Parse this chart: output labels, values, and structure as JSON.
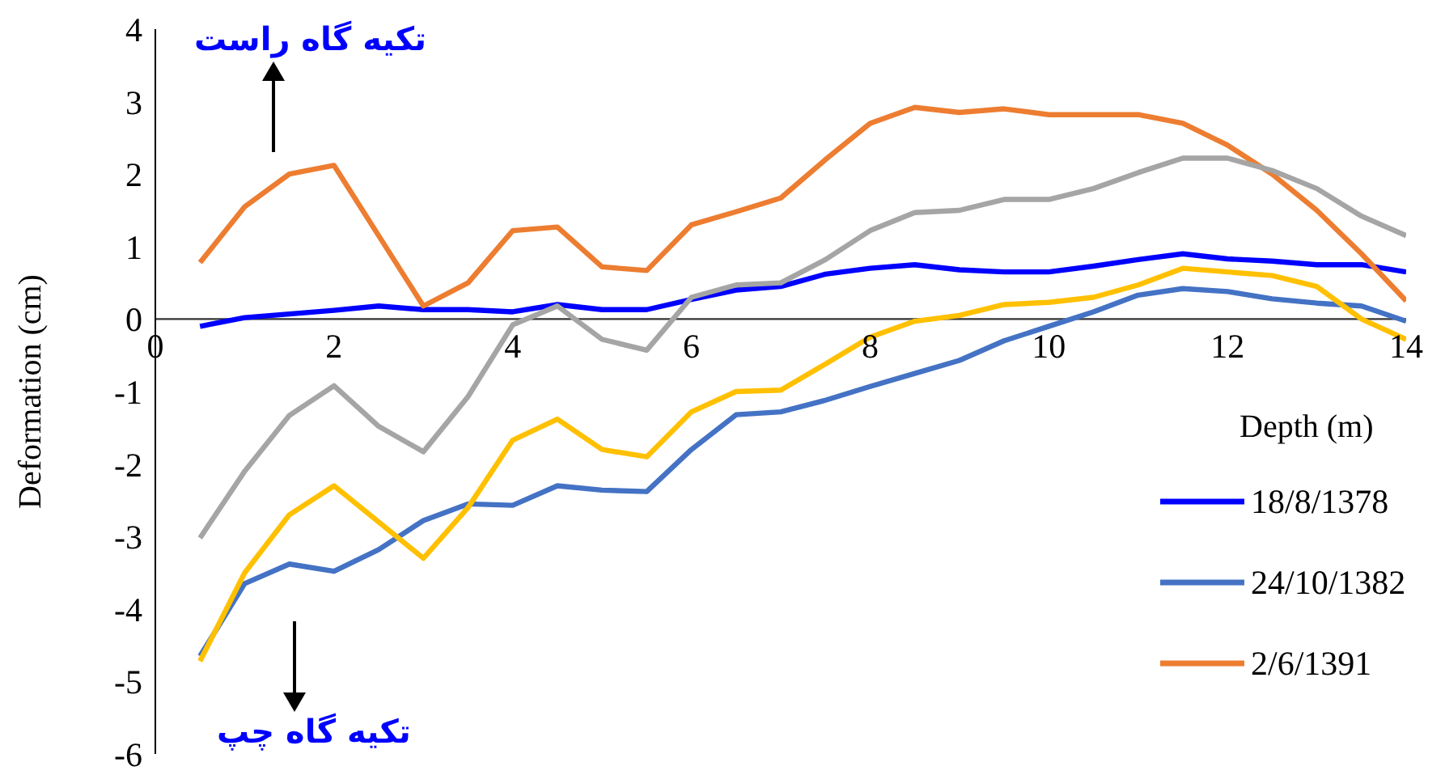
{
  "chart_data": {
    "type": "line",
    "xlabel": "Depth (m)",
    "ylabel": "Deformation (cm)",
    "x": [
      0.5,
      1,
      1.5,
      2,
      2.5,
      3,
      3.5,
      4,
      4.5,
      5,
      5.5,
      6,
      6.5,
      7,
      7.5,
      8,
      8.5,
      9,
      9.5,
      10,
      10.5,
      11,
      11.5,
      12,
      12.5,
      13,
      13.5,
      14
    ],
    "series": [
      {
        "name": "18/8/1378",
        "color": "#0000ff",
        "values": [
          -0.1,
          0.02,
          0.07,
          0.12,
          0.18,
          0.13,
          0.13,
          0.1,
          0.2,
          0.13,
          0.13,
          0.27,
          0.4,
          0.45,
          0.62,
          0.7,
          0.75,
          0.68,
          0.65,
          0.65,
          0.73,
          0.82,
          0.9,
          0.83,
          0.8,
          0.75,
          0.75,
          0.65
        ]
      },
      {
        "name": "24/10/1382",
        "color": "#4472c4",
        "values": [
          -4.65,
          -3.65,
          -3.38,
          -3.48,
          -3.18,
          -2.78,
          -2.55,
          -2.57,
          -2.3,
          -2.36,
          -2.38,
          -1.8,
          -1.32,
          -1.28,
          -1.12,
          -0.93,
          -0.75,
          -0.57,
          -0.3,
          -0.1,
          0.1,
          0.33,
          0.42,
          0.38,
          0.28,
          0.22,
          0.18,
          -0.03
        ]
      },
      {
        "name": "2/6/1391",
        "color": "#ed7d31",
        "values": [
          0.78,
          1.55,
          2.0,
          2.12,
          1.15,
          0.18,
          0.5,
          1.22,
          1.27,
          0.72,
          0.67,
          1.3,
          1.48,
          1.67,
          2.2,
          2.7,
          2.92,
          2.85,
          2.9,
          2.82,
          2.82,
          2.82,
          2.7,
          2.4,
          2.0,
          1.5,
          0.9,
          0.25
        ]
      },
      {
        "color": "#a5a5a5",
        "values": [
          -3.02,
          -2.1,
          -1.33,
          -0.92,
          -1.48,
          -1.83,
          -1.07,
          -0.08,
          0.18,
          -0.28,
          -0.43,
          0.3,
          0.47,
          0.5,
          0.82,
          1.22,
          1.47,
          1.5,
          1.65,
          1.65,
          1.8,
          2.02,
          2.22,
          2.22,
          2.05,
          1.8,
          1.42,
          1.15
        ]
      },
      {
        "color": "#ffc000",
        "values": [
          -4.72,
          -3.5,
          -2.7,
          -2.3,
          -2.8,
          -3.3,
          -2.6,
          -1.67,
          -1.38,
          -1.8,
          -1.9,
          -1.28,
          -1.0,
          -0.98,
          -0.62,
          -0.25,
          -0.03,
          0.05,
          0.2,
          0.23,
          0.3,
          0.47,
          0.7,
          0.65,
          0.6,
          0.45,
          0.0,
          -0.28
        ]
      }
    ],
    "xlim": [
      0,
      14
    ],
    "xticks": [
      0,
      2,
      4,
      6,
      8,
      10,
      12,
      14
    ],
    "ylim": [
      -6,
      4
    ],
    "yticks": [
      -6,
      -5,
      -4,
      -3,
      -2,
      -1,
      0,
      1,
      2,
      3,
      4
    ],
    "grid": false,
    "legend": "right",
    "marker": "none",
    "line_style": "solid",
    "annotations": [
      "تکیه گاه راست",
      "تکیه گاه چپ"
    ]
  }
}
